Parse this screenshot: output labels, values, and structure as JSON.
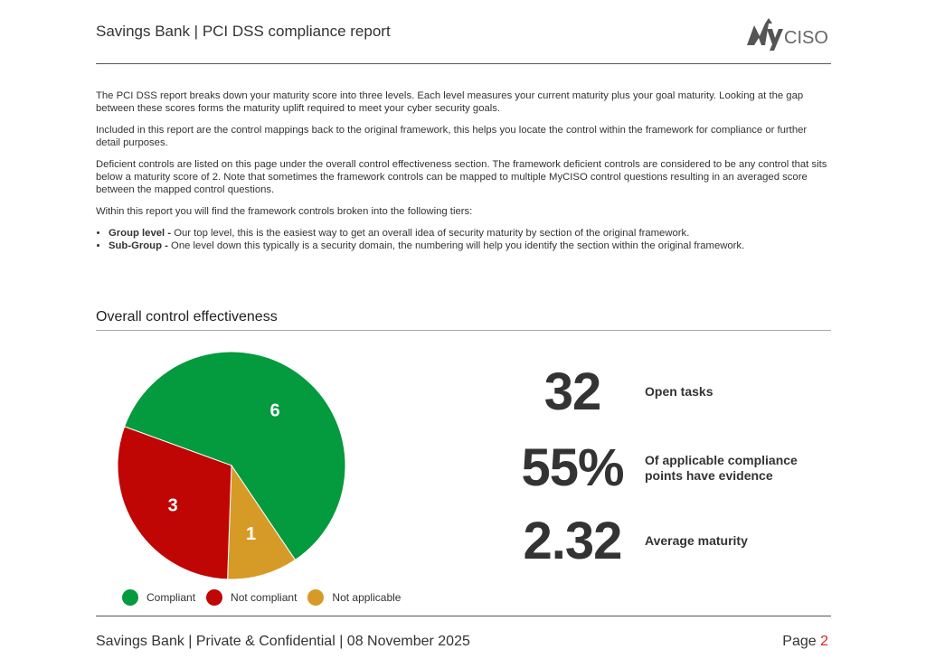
{
  "header": {
    "title": "Savings Bank | PCI DSS compliance report",
    "logo_text": "MyCISO"
  },
  "intro": {
    "p1": "The PCI DSS report breaks down your maturity score into three levels. Each level measures your current maturity plus your goal maturity. Looking at the gap between these scores forms the maturity uplift required to meet your cyber security goals.",
    "p2": "Included in this report are the control mappings back to the original framework, this helps you locate the control within the framework for compliance or further detail purposes.",
    "p3": "Deficient controls are listed on this page under the overall control effectiveness section. The framework deficient controls are considered to be any control that sits below a maturity score of 2. Note that sometimes the framework controls can be mapped to multiple MyCISO control questions resulting in an averaged score between the mapped control questions.",
    "p4": "Within this report you will find the framework controls broken into the following tiers:",
    "bullets": [
      {
        "term": "Group level -",
        "text": " Our top level, this is the easiest way to get an overall idea of security maturity by section of the original framework."
      },
      {
        "term": "Sub-Group -",
        "text": " One level down this typically is a security domain, the numbering will help you identify the section within the original framework."
      }
    ]
  },
  "section": {
    "title": "Overall control effectiveness"
  },
  "chart_data": {
    "type": "pie",
    "categories": [
      "Compliant",
      "Not compliant",
      "Not applicable"
    ],
    "values": [
      6,
      3,
      1
    ],
    "colors": [
      "#049a3e",
      "#c00505",
      "#d69a27"
    ],
    "legend": "bottom"
  },
  "stats": [
    {
      "value": "32",
      "label": "Open tasks"
    },
    {
      "value": "55%",
      "label": "Of applicable compliance points have evidence"
    },
    {
      "value": "2.32",
      "label": "Average maturity"
    }
  ],
  "footer": {
    "text": "Savings Bank | Private & Confidential | 08 November 2025",
    "page_label": "Page",
    "page_number": "2"
  }
}
